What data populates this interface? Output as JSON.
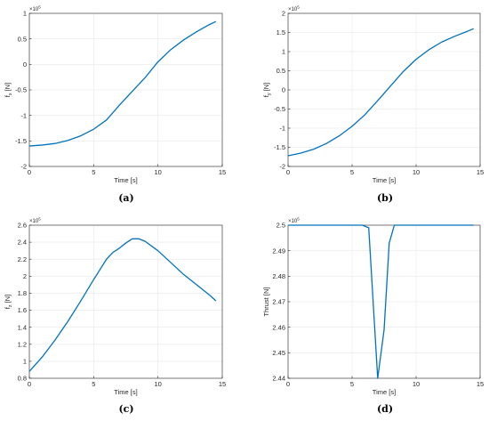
{
  "chart_data": [
    {
      "type": "line",
      "panel_label": "(a)",
      "xlabel": "Time [s]",
      "ylabel_main": "f",
      "ylabel_sub": "x",
      "ylabel_unit": "[N]",
      "y_multiplier": "×10",
      "y_exponent": "5",
      "xlim": [
        0,
        15
      ],
      "ylim": [
        -2,
        1
      ],
      "xticks": [
        0,
        5,
        10,
        15
      ],
      "yticks": [
        -2,
        -1.5,
        -1,
        -0.5,
        0,
        0.5,
        1
      ],
      "ytick_labels": [
        "-2",
        "-1.5",
        "-1",
        "-0.5",
        "0",
        "0.5",
        "1"
      ],
      "grid": true,
      "series": [
        {
          "color": "#0072bd",
          "x": [
            0,
            1,
            2,
            3,
            4,
            5,
            6,
            7,
            8,
            9,
            10,
            11,
            12,
            13,
            14,
            14.5
          ],
          "y": [
            -1.6,
            -1.58,
            -1.55,
            -1.49,
            -1.4,
            -1.27,
            -1.09,
            -0.8,
            -0.53,
            -0.26,
            0.05,
            0.29,
            0.48,
            0.64,
            0.78,
            0.84
          ]
        }
      ]
    },
    {
      "type": "line",
      "panel_label": "(b)",
      "xlabel": "Time [s]",
      "ylabel_main": "f",
      "ylabel_sub": "y",
      "ylabel_unit": "[N]",
      "y_multiplier": "×10",
      "y_exponent": "5",
      "xlim": [
        0,
        15
      ],
      "ylim": [
        -2,
        2
      ],
      "xticks": [
        0,
        5,
        10,
        15
      ],
      "yticks": [
        -2,
        -1.5,
        -1,
        -0.5,
        0,
        0.5,
        1,
        1.5,
        2
      ],
      "ytick_labels": [
        "-2",
        "-1.5",
        "-1",
        "-0.5",
        "0",
        "0.5",
        "1",
        "1.5",
        "2"
      ],
      "grid": true,
      "series": [
        {
          "color": "#0072bd",
          "x": [
            0,
            1,
            2,
            3,
            4,
            5,
            6,
            7,
            8,
            9,
            10,
            11,
            12,
            13,
            14,
            14.5
          ],
          "y": [
            -1.72,
            -1.65,
            -1.55,
            -1.4,
            -1.2,
            -0.95,
            -0.65,
            -0.28,
            0.1,
            0.48,
            0.8,
            1.05,
            1.25,
            1.4,
            1.53,
            1.6
          ]
        }
      ]
    },
    {
      "type": "line",
      "panel_label": "(c)",
      "xlabel": "Time [s]",
      "ylabel_main": "f",
      "ylabel_sub": "z",
      "ylabel_unit": "[N]",
      "y_multiplier": "×10",
      "y_exponent": "5",
      "xlim": [
        0,
        15
      ],
      "ylim": [
        0.8,
        2.6
      ],
      "xticks": [
        0,
        5,
        10,
        15
      ],
      "yticks": [
        0.8,
        1,
        1.2,
        1.4,
        1.6,
        1.8,
        2,
        2.2,
        2.4,
        2.6
      ],
      "ytick_labels": [
        "0.8",
        "1",
        "1.2",
        "1.4",
        "1.6",
        "1.8",
        "2",
        "2.2",
        "2.4",
        "2.6"
      ],
      "grid": true,
      "series": [
        {
          "color": "#0072bd",
          "x": [
            0,
            1,
            2,
            3,
            4,
            5,
            6,
            6.5,
            7,
            7.5,
            8,
            8.5,
            9,
            10,
            11,
            12,
            13,
            14,
            14.5
          ],
          "y": [
            0.88,
            1.05,
            1.25,
            1.47,
            1.71,
            1.96,
            2.2,
            2.28,
            2.33,
            2.39,
            2.44,
            2.44,
            2.41,
            2.3,
            2.16,
            2.02,
            1.9,
            1.78,
            1.71
          ]
        }
      ]
    },
    {
      "type": "line",
      "panel_label": "(d)",
      "xlabel": "Time [s]",
      "ylabel_main": "Thrust [N]",
      "ylabel_sub": "",
      "ylabel_unit": "",
      "y_multiplier": "×10",
      "y_exponent": "5",
      "xlim": [
        0,
        15
      ],
      "ylim": [
        2.44,
        2.5
      ],
      "xticks": [
        0,
        5,
        10,
        15
      ],
      "yticks": [
        2.44,
        2.45,
        2.46,
        2.47,
        2.48,
        2.49,
        2.5
      ],
      "ytick_labels": [
        "2.44",
        "2.45",
        "2.46",
        "2.47",
        "2.48",
        "2.49",
        "2.5"
      ],
      "grid": true,
      "series": [
        {
          "color": "#0072bd",
          "x": [
            0,
            5.8,
            6.3,
            7.0,
            7.5,
            7.9,
            8.3,
            14.5
          ],
          "y": [
            2.5,
            2.5,
            2.499,
            2.44,
            2.459,
            2.493,
            2.5,
            2.5
          ]
        }
      ]
    }
  ]
}
